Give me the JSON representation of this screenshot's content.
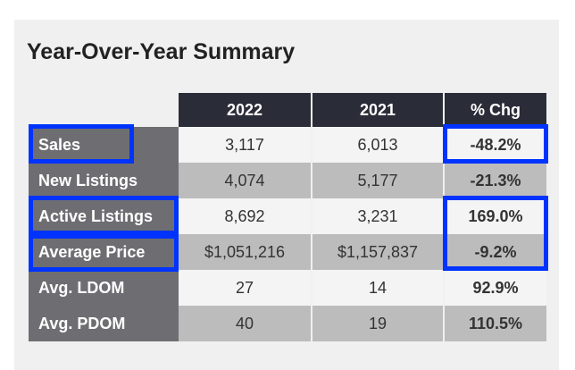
{
  "title": "Year-Over-Year Summary",
  "headers": [
    "2022",
    "2021",
    "% Chg"
  ],
  "rows": [
    {
      "label": "Sales",
      "y2022": "3,117",
      "y2021": "6,013",
      "chg": "-48.2%",
      "highlighted": true
    },
    {
      "label": "New Listings",
      "y2022": "4,074",
      "y2021": "5,177",
      "chg": "-21.3%",
      "highlighted": false
    },
    {
      "label": "Active Listings",
      "y2022": "8,692",
      "y2021": "3,231",
      "chg": "169.0%",
      "highlighted": true
    },
    {
      "label": "Average Price",
      "y2022": "$1,051,216",
      "y2021": "$1,157,837",
      "chg": "-9.2%",
      "highlighted": true
    },
    {
      "label": "Avg. LDOM",
      "y2022": "27",
      "y2021": "14",
      "chg": "92.9%",
      "highlighted": false
    },
    {
      "label": "Avg. PDOM",
      "y2022": "40",
      "y2021": "19",
      "chg": "110.5%",
      "highlighted": false
    }
  ],
  "highlight_color": "#0033ff"
}
